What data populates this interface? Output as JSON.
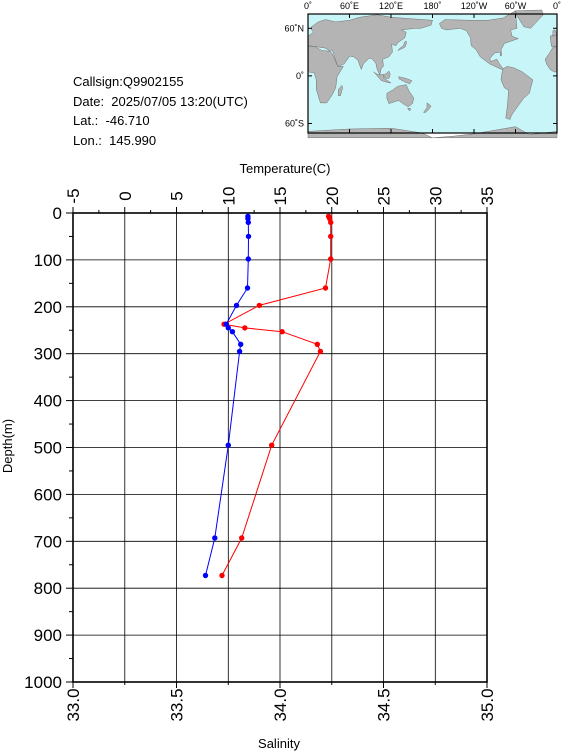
{
  "station": {
    "callsign": "Callsign:Q9902155",
    "date": "Date:  2025/07/05 13:20(UTC)",
    "lat": "Lat.:  -46.710",
    "lon": "Lon.:  145.990"
  },
  "map": {
    "top_labels": [
      "0˚",
      "60˚E",
      "120˚E",
      "180˚",
      "120˚W",
      "60˚W",
      "0˚"
    ],
    "side_labels": [
      "60˚N",
      "0˚",
      "60˚S"
    ],
    "ocean_color": "#c8f5f8",
    "land_color": "#b4b4b4",
    "marker_color": "#ff0000",
    "marker_icon": "star-icon"
  },
  "chart_data": {
    "type": "line",
    "title": "",
    "ylabel": "Depth(m)",
    "ylim": [
      0,
      1000
    ],
    "y_ticks": [
      "0",
      "100",
      "200",
      "300",
      "400",
      "500",
      "600",
      "700",
      "800",
      "900",
      "1000"
    ],
    "grid": true,
    "temperature_axis": {
      "label": "Temperature(C)",
      "position": "top",
      "range": [
        -5,
        35
      ],
      "ticks": [
        "-5",
        "0",
        "5",
        "10",
        "15",
        "20",
        "25",
        "30",
        "35"
      ]
    },
    "salinity_axis": {
      "label": "Salinity",
      "position": "bottom",
      "range": [
        33.0,
        35.0
      ],
      "ticks": [
        "33.0",
        "33.5",
        "34.0",
        "34.5",
        "35.0"
      ]
    },
    "series": [
      {
        "axis": "temperature",
        "color": "#ff0000",
        "points": [
          {
            "x": 19.7,
            "y": 7
          },
          {
            "x": 19.8,
            "y": 12
          },
          {
            "x": 19.9,
            "y": 20
          },
          {
            "x": 19.9,
            "y": 50
          },
          {
            "x": 19.9,
            "y": 98
          },
          {
            "x": 19.4,
            "y": 160
          },
          {
            "x": 13.0,
            "y": 197
          },
          {
            "x": 9.6,
            "y": 237
          },
          {
            "x": 11.6,
            "y": 245
          },
          {
            "x": 15.2,
            "y": 253
          },
          {
            "x": 18.6,
            "y": 280
          },
          {
            "x": 18.9,
            "y": 295
          },
          {
            "x": 14.2,
            "y": 495
          },
          {
            "x": 11.3,
            "y": 693
          },
          {
            "x": 9.4,
            "y": 773
          }
        ]
      },
      {
        "axis": "salinity",
        "color": "#0000ff",
        "points": [
          {
            "x": 33.845,
            "y": 7
          },
          {
            "x": 33.845,
            "y": 12
          },
          {
            "x": 33.847,
            "y": 20
          },
          {
            "x": 33.848,
            "y": 50
          },
          {
            "x": 33.847,
            "y": 98
          },
          {
            "x": 33.843,
            "y": 160
          },
          {
            "x": 33.79,
            "y": 197
          },
          {
            "x": 33.74,
            "y": 237
          },
          {
            "x": 33.75,
            "y": 245
          },
          {
            "x": 33.77,
            "y": 253
          },
          {
            "x": 33.81,
            "y": 280
          },
          {
            "x": 33.805,
            "y": 295
          },
          {
            "x": 33.75,
            "y": 495
          },
          {
            "x": 33.685,
            "y": 693
          },
          {
            "x": 33.64,
            "y": 773
          }
        ]
      }
    ]
  }
}
